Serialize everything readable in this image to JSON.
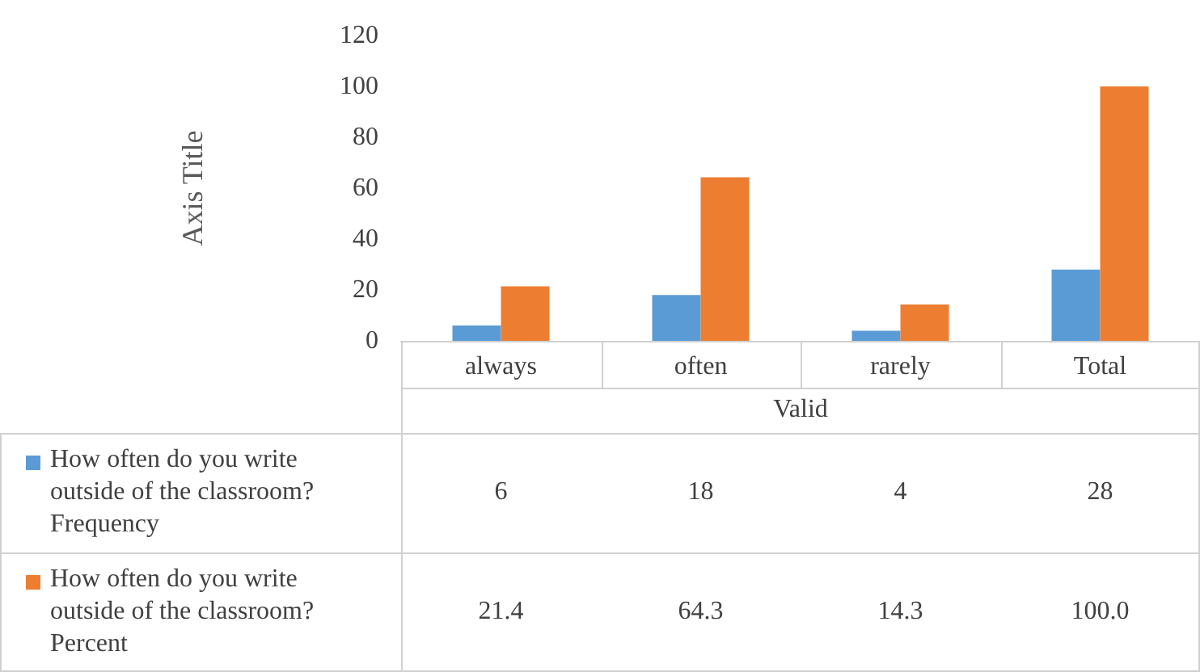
{
  "chart_data": {
    "type": "bar",
    "ylabel": "Axis Title",
    "xlabel": "Valid",
    "categories": [
      "always",
      "often",
      "rarely",
      "Total"
    ],
    "series": [
      {
        "name": "How often do you write outside of the classroom? Frequency",
        "color": "#5b9bd5",
        "values": [
          6,
          18,
          4,
          28
        ],
        "value_labels": [
          "6",
          "18",
          "4",
          "28"
        ]
      },
      {
        "name": "How often do you write outside of the classroom? Percent",
        "color": "#ed7d31",
        "values": [
          21.4,
          64.3,
          14.3,
          100.0
        ],
        "value_labels": [
          "21.4",
          "64.3",
          "14.3",
          "100.0"
        ]
      }
    ],
    "ylim": [
      0,
      120
    ],
    "yticks": [
      0,
      20,
      40,
      60,
      80,
      100,
      120
    ],
    "grid": false,
    "legend": "bottom"
  }
}
